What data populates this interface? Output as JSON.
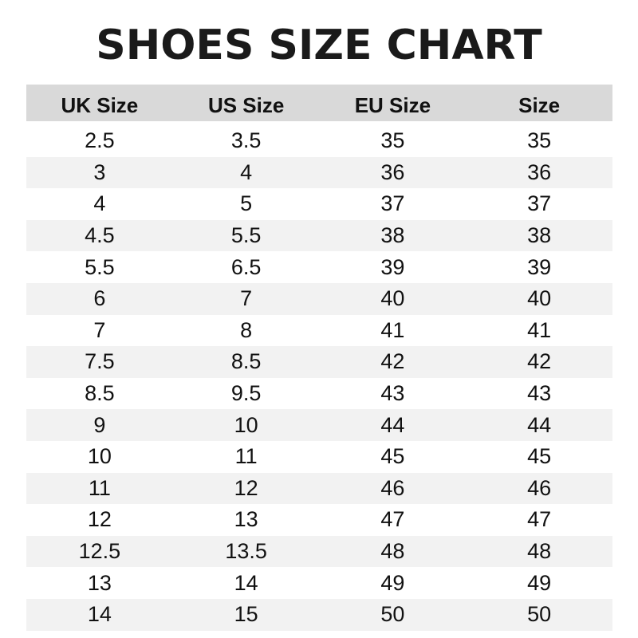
{
  "title": "SHOES SIZE CHART",
  "table": {
    "headers": [
      "UK Size",
      "US Size",
      "EU Size",
      "Size"
    ],
    "rows": [
      [
        "2.5",
        "3.5",
        "35",
        "35"
      ],
      [
        "3",
        "4",
        "36",
        "36"
      ],
      [
        "4",
        "5",
        "37",
        "37"
      ],
      [
        "4.5",
        "5.5",
        "38",
        "38"
      ],
      [
        "5.5",
        "6.5",
        "39",
        "39"
      ],
      [
        "6",
        "7",
        "40",
        "40"
      ],
      [
        "7",
        "8",
        "41",
        "41"
      ],
      [
        "7.5",
        "8.5",
        "42",
        "42"
      ],
      [
        "8.5",
        "9.5",
        "43",
        "43"
      ],
      [
        "9",
        "10",
        "44",
        "44"
      ],
      [
        "10",
        "11",
        "45",
        "45"
      ],
      [
        "11",
        "12",
        "46",
        "46"
      ],
      [
        "12",
        "13",
        "47",
        "47"
      ],
      [
        "12.5",
        "13.5",
        "48",
        "48"
      ],
      [
        "13",
        "14",
        "49",
        "49"
      ],
      [
        "14",
        "15",
        "50",
        "50"
      ]
    ]
  },
  "colors": {
    "header_bg": "#d9d9d9",
    "alt_row_bg": "#f2f2f2",
    "text": "#111111"
  }
}
